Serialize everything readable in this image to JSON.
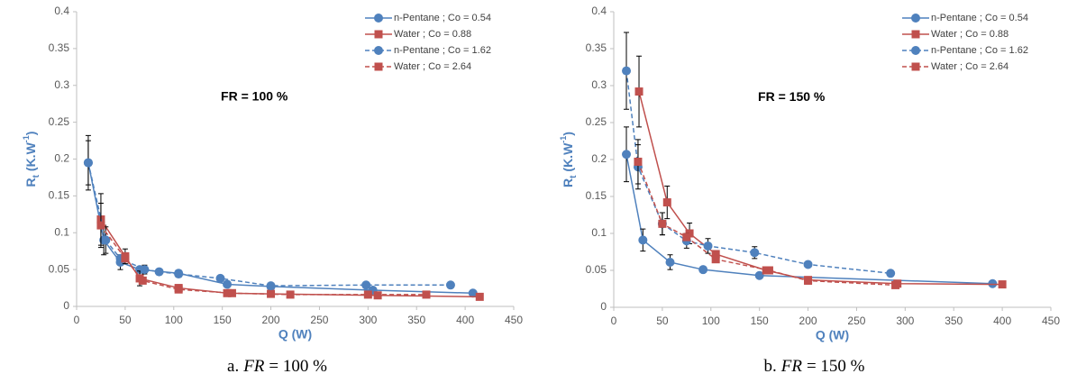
{
  "chart_data": [
    {
      "type": "line",
      "annotation": "FR = 100 %",
      "xlabel": "Q (W)",
      "ylabel": {
        "main": "R",
        "sub": "t",
        "unit": " (K.W",
        "sup": "-1",
        "end": ")"
      },
      "caption": {
        "prefix": "a.",
        "italic": "FR",
        "rest": "= 100 %"
      },
      "xlim": [
        0,
        450
      ],
      "xticks": [
        0,
        50,
        100,
        150,
        200,
        250,
        300,
        350,
        400,
        450
      ],
      "ylim": [
        0,
        0.4
      ],
      "yticks": [
        0,
        0.05,
        0.1,
        0.15,
        0.2,
        0.25,
        0.3,
        0.35,
        0.4
      ],
      "legend": "upper right",
      "series": [
        {
          "name": "n-Pentane ; Co = 0.54",
          "color": "#4f81bd",
          "marker": "circle",
          "dashed": false,
          "x": [
            12,
            28,
            45,
            65,
            105,
            155,
            200,
            305,
            408
          ],
          "values": [
            0.195,
            0.09,
            0.06,
            0.05,
            0.045,
            0.03,
            0.027,
            0.022,
            0.018
          ],
          "errors": [
            0.037,
            0.02,
            0.01,
            null,
            null,
            null,
            null,
            null,
            null
          ]
        },
        {
          "name": "Water ; Co = 0.88",
          "color": "#c0504d",
          "marker": "square",
          "dashed": false,
          "x": [
            25,
            50,
            65,
            105,
            155,
            200,
            310,
            415
          ],
          "values": [
            0.118,
            0.068,
            0.038,
            0.025,
            0.018,
            0.017,
            0.015,
            0.013
          ],
          "errors": [
            0.035,
            0.01,
            0.01,
            null,
            null,
            null,
            null,
            null
          ]
        },
        {
          "name": "n-Pentane ; Co = 1.62",
          "color": "#4f81bd",
          "marker": "circle",
          "dashed": true,
          "x": [
            12,
            30,
            45,
            70,
            85,
            105,
            148,
            200,
            298,
            385
          ],
          "values": [
            0.195,
            0.09,
            0.065,
            0.05,
            0.047,
            0.044,
            0.038,
            0.028,
            0.029,
            0.029
          ],
          "errors": [
            0.03,
            0.018,
            null,
            0.006,
            null,
            null,
            null,
            null,
            null,
            null
          ]
        },
        {
          "name": "Water ; Co = 2.64",
          "color": "#c0504d",
          "marker": "square",
          "dashed": true,
          "x": [
            25,
            50,
            68,
            105,
            160,
            220,
            300,
            360
          ],
          "values": [
            0.11,
            0.065,
            0.035,
            0.023,
            0.018,
            0.016,
            0.016,
            0.016
          ],
          "errors": [
            0.03,
            null,
            null,
            null,
            null,
            null,
            null,
            null
          ]
        }
      ]
    },
    {
      "type": "line",
      "annotation": "FR = 150 %",
      "xlabel": "Q (W)",
      "ylabel": {
        "main": "R",
        "sub": "t",
        "unit": " (K.W",
        "sup": "-1",
        "end": ")"
      },
      "caption": {
        "prefix": "b.",
        "italic": "FR",
        "rest": "= 150 %"
      },
      "xlim": [
        0,
        450
      ],
      "xticks": [
        0,
        50,
        100,
        150,
        200,
        250,
        300,
        350,
        400,
        450
      ],
      "ylim": [
        0,
        0.4
      ],
      "yticks": [
        0,
        0.05,
        0.1,
        0.15,
        0.2,
        0.25,
        0.3,
        0.35,
        0.4
      ],
      "legend": "upper right",
      "series": [
        {
          "name": "n-Pentane ; Co = 0.54",
          "color": "#4f81bd",
          "marker": "circle",
          "dashed": false,
          "x": [
            13,
            30,
            58,
            92,
            150,
            390
          ],
          "values": [
            0.207,
            0.091,
            0.061,
            0.051,
            0.043,
            0.032
          ],
          "errors": [
            0.037,
            0.015,
            0.01,
            null,
            null,
            null
          ]
        },
        {
          "name": "Water ; Co = 0.88",
          "color": "#c0504d",
          "marker": "square",
          "dashed": false,
          "x": [
            26,
            55,
            78,
            105,
            157,
            200,
            292,
            400
          ],
          "values": [
            0.292,
            0.142,
            0.1,
            0.072,
            0.05,
            0.037,
            0.032,
            0.031
          ],
          "errors": [
            0.048,
            0.022,
            0.014,
            null,
            null,
            null,
            null,
            null
          ]
        },
        {
          "name": "n-Pentane ; Co = 1.62",
          "color": "#4f81bd",
          "marker": "circle",
          "dashed": true,
          "x": [
            13,
            25,
            50,
            75,
            97,
            145,
            200,
            285
          ],
          "values": [
            0.32,
            0.19,
            0.113,
            0.09,
            0.083,
            0.074,
            0.058,
            0.046
          ],
          "errors": [
            0.052,
            0.03,
            0.015,
            0.01,
            0.01,
            0.008,
            null,
            null
          ]
        },
        {
          "name": "Water ; Co = 2.64",
          "color": "#c0504d",
          "marker": "square",
          "dashed": true,
          "x": [
            25,
            50,
            75,
            105,
            160,
            200,
            290
          ],
          "values": [
            0.197,
            0.113,
            0.095,
            0.065,
            0.05,
            0.036,
            0.03
          ],
          "errors": [
            0.03,
            0.015,
            null,
            null,
            null,
            null,
            null
          ]
        }
      ]
    }
  ]
}
